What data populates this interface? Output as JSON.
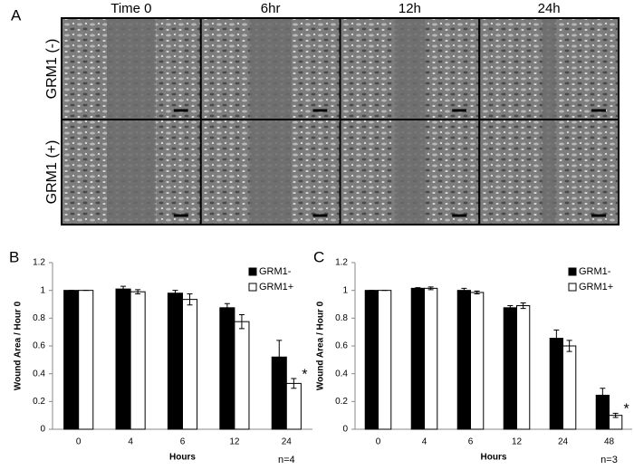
{
  "panel_a": {
    "label": "A",
    "columns": [
      "Time 0",
      "6hr",
      "12h",
      "24h"
    ],
    "rows": [
      "GRM1 (-)",
      "GRM1 (+)"
    ]
  },
  "chart_data": [
    {
      "type": "bar",
      "panel": "B",
      "xlabel": "Hours",
      "ylabel": "Wound Area / Hour 0",
      "categories": [
        "0",
        "4",
        "6",
        "12",
        "24"
      ],
      "series": [
        {
          "name": "GRM1-",
          "color": "#000000",
          "values": [
            1,
            1.01,
            0.98,
            0.875,
            0.52
          ],
          "errors": [
            0,
            0.02,
            0.02,
            0.03,
            0.12
          ]
        },
        {
          "name": "GRM1+",
          "color": "#ffffff",
          "values": [
            1,
            0.99,
            0.935,
            0.775,
            0.33
          ],
          "errors": [
            0,
            0.015,
            0.04,
            0.05,
            0.035
          ]
        }
      ],
      "ylim": [
        0,
        1.2
      ],
      "yticks": [
        0,
        0.2,
        0.4,
        0.6,
        0.8,
        1,
        1.2
      ],
      "legend": "upper right",
      "significance_label": "*",
      "n_label": "n=4"
    },
    {
      "type": "bar",
      "panel": "C",
      "xlabel": "Hours",
      "ylabel": "Wound Area / Hour 0",
      "categories": [
        "0",
        "4",
        "6",
        "12",
        "24",
        "48"
      ],
      "series": [
        {
          "name": "GRM1-",
          "color": "#000000",
          "values": [
            1,
            1.015,
            1.0,
            0.875,
            0.655,
            0.245
          ],
          "errors": [
            0,
            0.005,
            0.015,
            0.015,
            0.06,
            0.05
          ]
        },
        {
          "name": "GRM1+",
          "color": "#ffffff",
          "values": [
            1,
            1.015,
            0.985,
            0.89,
            0.6,
            0.1
          ],
          "errors": [
            0,
            0.01,
            0.01,
            0.02,
            0.04,
            0.015
          ]
        }
      ],
      "ylim": [
        0,
        1.2
      ],
      "yticks": [
        0,
        0.2,
        0.4,
        0.6,
        0.8,
        1,
        1.2
      ],
      "legend": "upper right",
      "significance_label": "*",
      "n_label": "n=3"
    }
  ]
}
